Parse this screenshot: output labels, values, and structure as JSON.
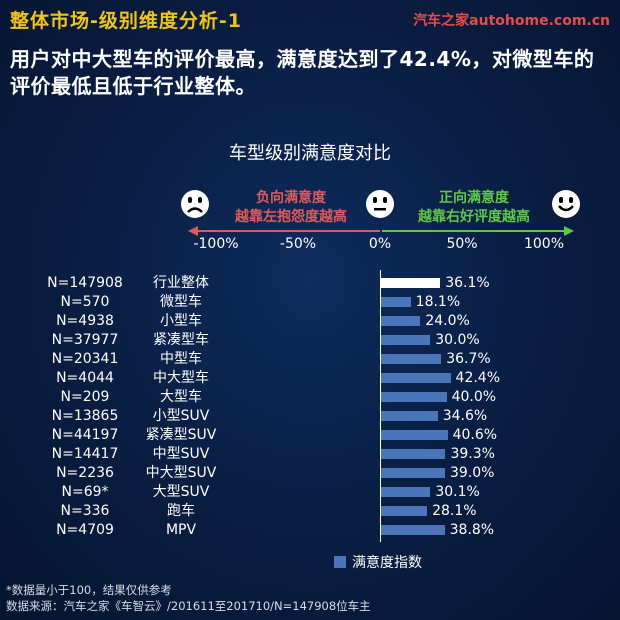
{
  "header": {
    "title": "整体市场-级别维度分析-1",
    "brand": "汽车之家autohome.com.cn"
  },
  "headline": "用户对中大型车的评价最高，满意度达到了42.4%，对微型车的评价最低且低于行业整体。",
  "scale": {
    "negative_title": "负向满意度",
    "negative_desc": "越靠左抱怨度越高",
    "positive_title": "正向满意度",
    "positive_desc": "越靠右好评度越高"
  },
  "colors": {
    "bar": "#4a76b9",
    "first_bar": "#ffffff",
    "negative": "#e05a5a",
    "positive": "#5fc84a",
    "title_accent": "#f0c419",
    "brand": "#e94a4a"
  },
  "icons": [
    "sad-face-icon",
    "neutral-face-icon",
    "happy-face-icon"
  ],
  "chart_data": {
    "type": "bar",
    "orientation": "horizontal",
    "title": "车型级别满意度对比",
    "xlim": [
      -100,
      100
    ],
    "x_ticks": [
      "-100%",
      "-50%",
      "0%",
      "50%",
      "100%"
    ],
    "legend": "满意度指数",
    "legend_position": "bottom",
    "categories": [
      "行业整体",
      "微型车",
      "小型车",
      "紧凑型车",
      "中型车",
      "中大型车",
      "大型车",
      "小型SUV",
      "紧凑型SUV",
      "中型SUV",
      "中大型SUV",
      "大型SUV",
      "跑车",
      "MPV"
    ],
    "sample_sizes": [
      "N=147908",
      "N=570",
      "N=4938",
      "N=37977",
      "N=20341",
      "N=4044",
      "N=209",
      "N=13865",
      "N=44197",
      "N=14417",
      "N=2236",
      "N=69*",
      "N=336",
      "N=4709"
    ],
    "values": [
      36.1,
      18.1,
      24.0,
      30.0,
      36.7,
      42.4,
      40.0,
      34.6,
      40.6,
      39.3,
      39.0,
      30.1,
      28.1,
      38.8
    ],
    "value_labels": [
      "36.1%",
      "18.1%",
      "24.0%",
      "30.0%",
      "36.7%",
      "42.4%",
      "40.0%",
      "34.6%",
      "40.6%",
      "39.3%",
      "39.0%",
      "30.1%",
      "28.1%",
      "38.8%"
    ]
  },
  "footnotes": {
    "note": "*数据量小于100，结果仅供参考",
    "source": "数据来源：汽车之家《车智云》/201611至201710/N=147908位车主"
  }
}
